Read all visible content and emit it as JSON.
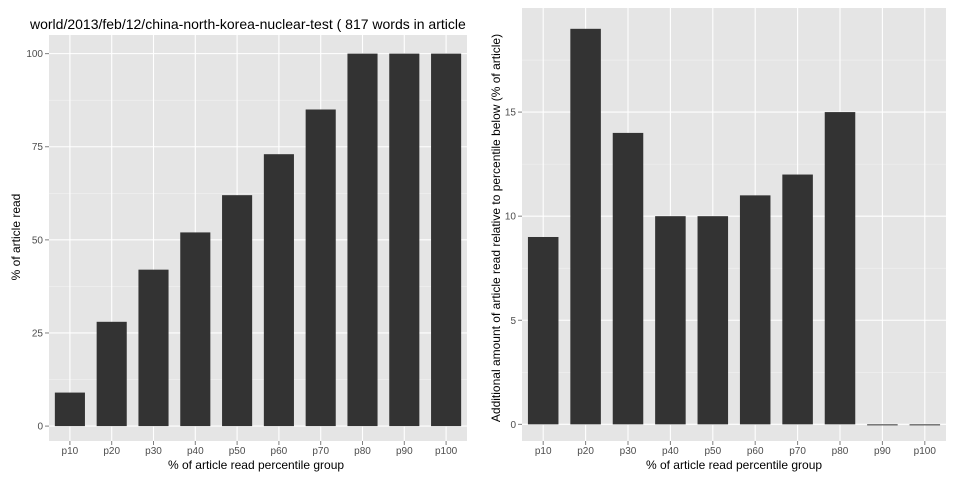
{
  "chart_data": [
    {
      "type": "bar",
      "title": "world/2013/feb/12/china-north-korea-nuclear-test ( 817 words in article",
      "xlabel": "% of article read percentile group",
      "ylabel": "% of article read",
      "categories": [
        "p10",
        "p20",
        "p30",
        "p40",
        "p50",
        "p60",
        "p70",
        "p80",
        "p90",
        "p100"
      ],
      "values": [
        9,
        28,
        42,
        52,
        62,
        73,
        85,
        100,
        100,
        100
      ],
      "ylim": [
        -4,
        105
      ],
      "yticks": [
        0,
        25,
        50,
        75,
        100
      ],
      "grid": true,
      "colors": {
        "bar": "#333333",
        "panel": "#e5e5e5",
        "grid_major": "#ffffff",
        "grid_minor": "#f2f2f2"
      }
    },
    {
      "type": "bar",
      "title": "",
      "xlabel": "% of article read percentile group",
      "ylabel": "Additional amount of article read relative to percentile below (% of article)",
      "categories": [
        "p10",
        "p20",
        "p30",
        "p40",
        "p50",
        "p60",
        "p70",
        "p80",
        "p90",
        "p100"
      ],
      "values": [
        9,
        19,
        14,
        10,
        10,
        11,
        12,
        15,
        0,
        0
      ],
      "ylim": [
        -0.8,
        20
      ],
      "yticks": [
        0,
        5,
        10,
        15
      ],
      "grid": true,
      "colors": {
        "bar": "#333333",
        "panel": "#e5e5e5",
        "grid_major": "#ffffff",
        "grid_minor": "#f2f2f2"
      }
    }
  ]
}
